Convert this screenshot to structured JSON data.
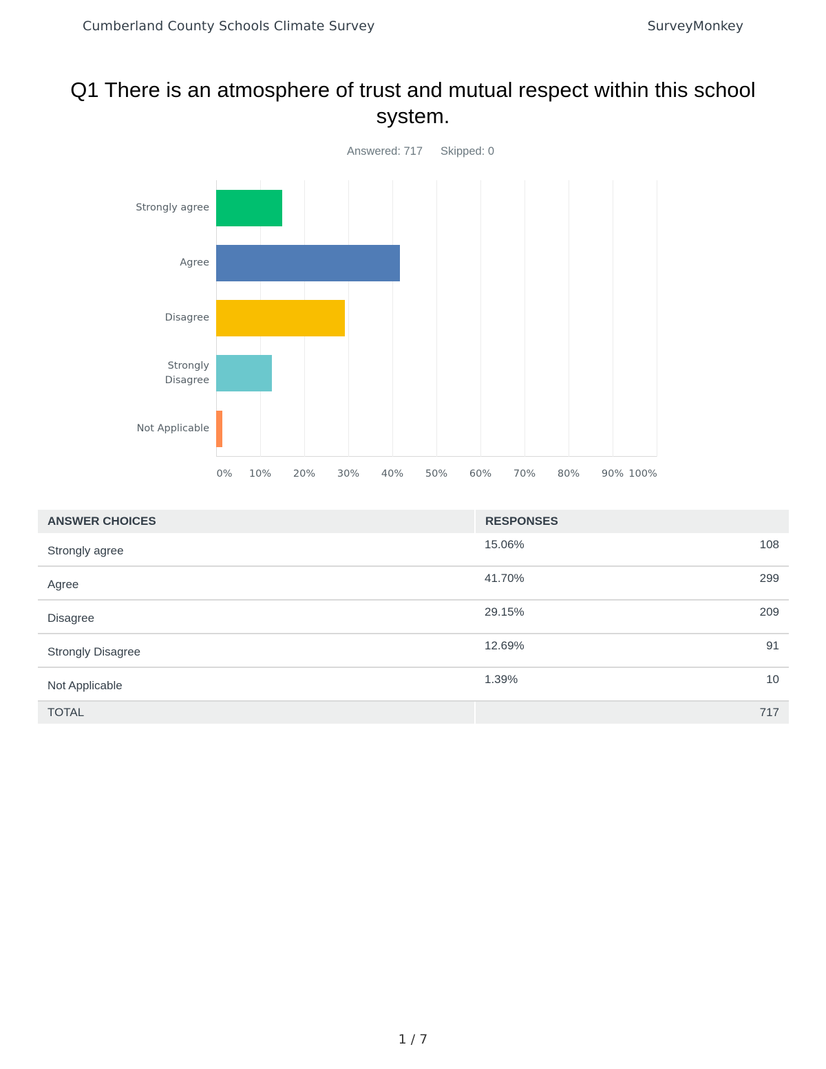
{
  "header": {
    "survey_title": "Cumberland County Schools Climate Survey",
    "brand": "SurveyMonkey"
  },
  "question": {
    "title": "Q1 There is an atmosphere of trust and mutual respect within this school system.",
    "answered": "Answered: 717",
    "skipped": "Skipped: 0"
  },
  "chart_data": {
    "type": "bar",
    "orientation": "horizontal",
    "title": "Q1 There is an atmosphere of trust and mutual respect within this school system.",
    "categories": [
      "Strongly agree",
      "Agree",
      "Disagree",
      "Strongly Disagree",
      "Not Applicable"
    ],
    "display_labels": [
      "Strongly agree",
      "Agree",
      "Disagree",
      "Strongly\nDisagree",
      "Not Applicable"
    ],
    "values": [
      15.06,
      41.7,
      29.15,
      12.69,
      1.39
    ],
    "counts": [
      108,
      299,
      209,
      91,
      10
    ],
    "colors": [
      "#00bf6f",
      "#507cb6",
      "#f9be00",
      "#6bc8cd",
      "#ff8b4f"
    ],
    "xlabel": "",
    "ylabel": "",
    "xlim": [
      0,
      100
    ],
    "x_ticks": [
      "0%",
      "10%",
      "20%",
      "30%",
      "40%",
      "50%",
      "60%",
      "70%",
      "80%",
      "90%",
      "100%"
    ],
    "grid": true,
    "legend": "none"
  },
  "table": {
    "headers": {
      "choices": "ANSWER CHOICES",
      "responses": "RESPONSES"
    },
    "rows": [
      {
        "choice": "Strongly agree",
        "percent": "15.06%",
        "count": "108"
      },
      {
        "choice": "Agree",
        "percent": "41.70%",
        "count": "299"
      },
      {
        "choice": "Disagree",
        "percent": "29.15%",
        "count": "209"
      },
      {
        "choice": "Strongly Disagree",
        "percent": "12.69%",
        "count": "91"
      },
      {
        "choice": "Not Applicable",
        "percent": "1.39%",
        "count": "10"
      }
    ],
    "total_label": "TOTAL",
    "total_count": "717"
  },
  "footer": {
    "page": "1 / 7"
  }
}
